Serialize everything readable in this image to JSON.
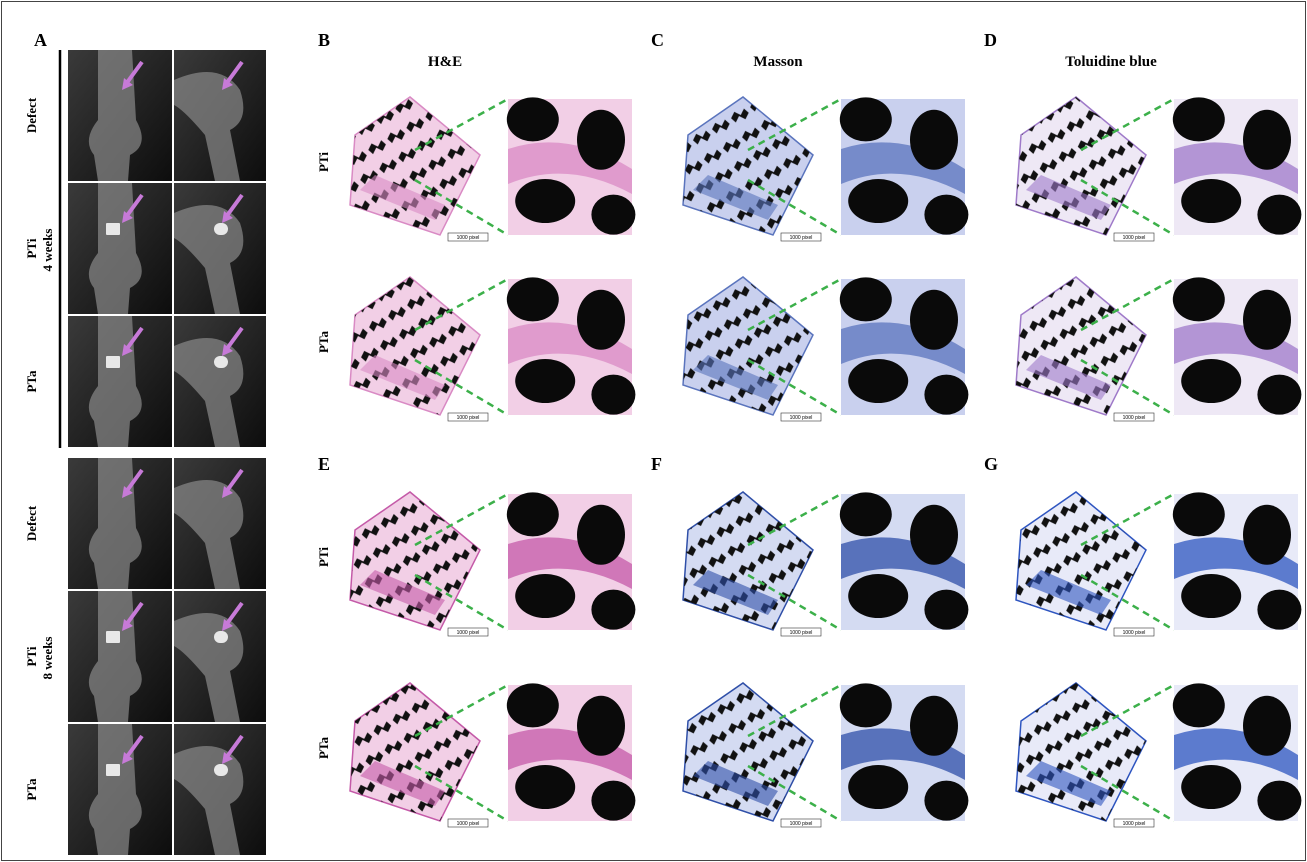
{
  "figure": {
    "xray": {
      "letter": "A",
      "groups": [
        {
          "time": "4 weeks",
          "rows": [
            "Defect",
            "PTi",
            "PTa"
          ]
        },
        {
          "time": "8 weeks",
          "rows": [
            "Defect",
            "PTi",
            "PTa"
          ]
        }
      ]
    },
    "histology": {
      "columns": [
        {
          "title": "H&E",
          "letters": [
            "B",
            "E"
          ]
        },
        {
          "title": "Masson",
          "letters": [
            "C",
            "F"
          ]
        },
        {
          "title": "Toluidine blue",
          "letters": [
            "D",
            "G"
          ]
        }
      ],
      "row_labels": [
        "PTi",
        "PTa"
      ],
      "scale_bar": "1000 pixel"
    }
  }
}
